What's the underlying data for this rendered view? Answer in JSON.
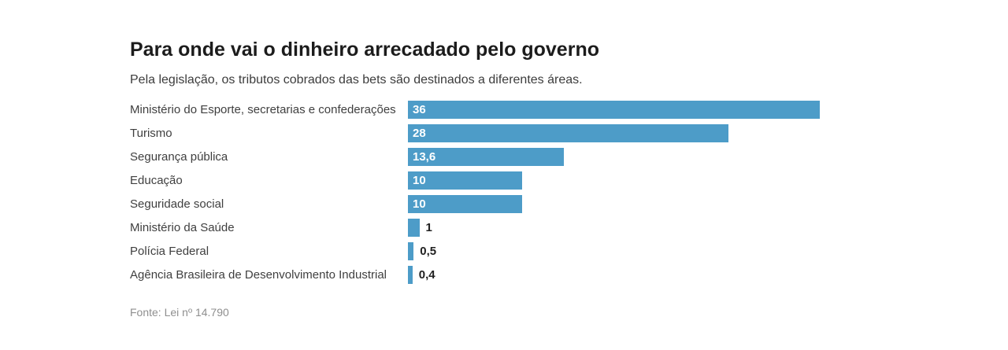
{
  "page": {
    "background": "#ffffff"
  },
  "header": {
    "title": "Para onde vai o dinheiro arrecadado pelo governo",
    "subtitle": "Pela legislação, os tributos cobrados das bets são destinados a diferentes áreas."
  },
  "chart_data": {
    "type": "bar",
    "orientation": "horizontal",
    "categories": [
      "Ministério do Esporte, secretarias e confederações",
      "Turismo",
      "Segurança pública",
      "Educação",
      "Seguridade social",
      "Ministério da Saúde",
      "Polícia Federal",
      "Agência Brasileira de Desenvolvimento Industrial"
    ],
    "values": [
      36,
      28,
      13.6,
      10,
      10,
      1,
      0.5,
      0.4
    ],
    "value_labels": [
      "36",
      "28",
      "13,6",
      "10",
      "10",
      "1",
      "0,5",
      "0,4"
    ],
    "xlim": [
      0,
      36
    ],
    "bar_color": "#4d9cc8",
    "value_label_color_inside": "#ffffff",
    "value_label_color_outside": "#212121",
    "grid": false,
    "legend": false
  },
  "footer": {
    "source": "Fonte: Lei nº 14.790"
  }
}
